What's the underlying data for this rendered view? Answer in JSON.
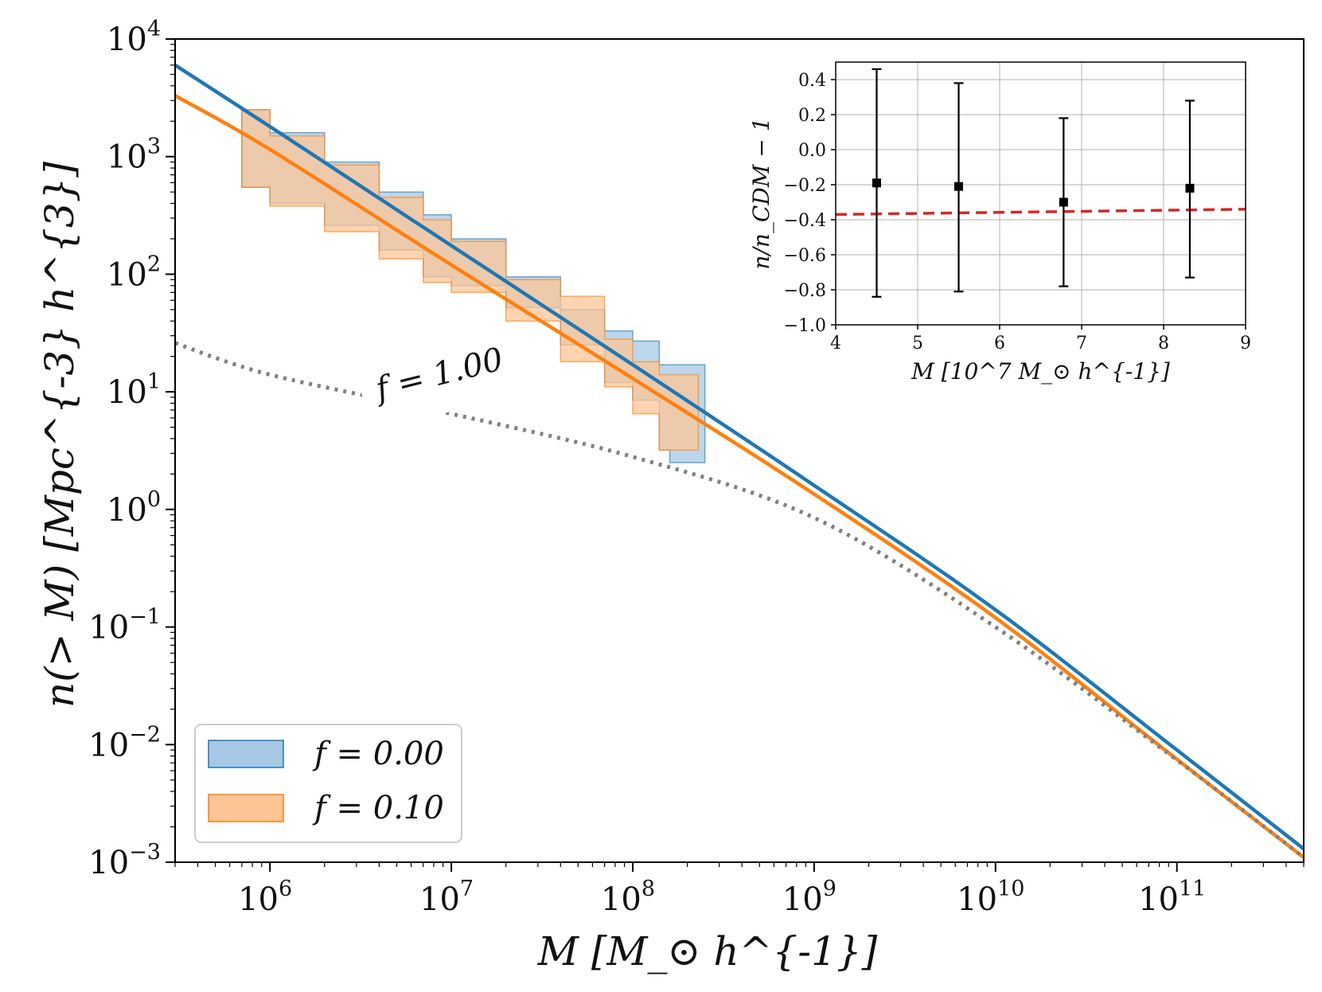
{
  "chart_data": [
    {
      "type": "line",
      "xscale": "log",
      "yscale": "log",
      "xlabel": "M [M_⊙ h^{-1}]",
      "ylabel": "n(> M) [Mpc^{-3} h^{3}]",
      "xlim": [
        300000,
        500000000000
      ],
      "ylim": [
        0.001,
        10000
      ],
      "xticks": [
        {
          "value": 1000000,
          "base": "10",
          "exp": "6"
        },
        {
          "value": 10000000,
          "base": "10",
          "exp": "7"
        },
        {
          "value": 100000000,
          "base": "10",
          "exp": "8"
        },
        {
          "value": 1000000000,
          "base": "10",
          "exp": "9"
        },
        {
          "value": 10000000000,
          "base": "10",
          "exp": "10"
        },
        {
          "value": 100000000000,
          "base": "10",
          "exp": "11"
        }
      ],
      "yticks": [
        {
          "value": 0.001,
          "base": "10",
          "exp": "−3"
        },
        {
          "value": 0.01,
          "base": "10",
          "exp": "−2"
        },
        {
          "value": 0.1,
          "base": "10",
          "exp": "−1"
        },
        {
          "value": 1,
          "base": "10",
          "exp": "0"
        },
        {
          "value": 10,
          "base": "10",
          "exp": "1"
        },
        {
          "value": 100,
          "base": "10",
          "exp": "2"
        },
        {
          "value": 1000,
          "base": "10",
          "exp": "3"
        },
        {
          "value": 10000,
          "base": "10",
          "exp": "4"
        }
      ],
      "legend_position": "lower-left",
      "series": [
        {
          "name": "f = 0.00",
          "kind": "line",
          "color": "#1f77b4",
          "x": [
            300000,
            1000000,
            10000000,
            100000000,
            1000000000,
            10000000000,
            100000000000,
            500000000000
          ],
          "y": [
            6000,
            1800,
            175,
            17,
            1.6,
            0.14,
            0.009,
            0.0013
          ]
        },
        {
          "name": "f = 0.10",
          "kind": "line",
          "color": "#ff7f0e",
          "x": [
            300000,
            1000000,
            10000000,
            100000000,
            1000000000,
            10000000000,
            100000000000,
            500000000000
          ],
          "y": [
            3300,
            1150,
            120,
            13,
            1.35,
            0.12,
            0.0075,
            0.0011
          ]
        },
        {
          "name": "f = 1.00",
          "kind": "dotted",
          "color": "#808080",
          "x": [
            300000,
            1000000,
            10000000,
            100000000,
            1000000000,
            10000000000,
            100000000000,
            500000000000
          ],
          "y": [
            26,
            14,
            6.5,
            2.8,
            0.85,
            0.1,
            0.0074,
            0.0011
          ]
        }
      ],
      "bands": [
        {
          "name": "f = 0.00",
          "color": "#1f77b4",
          "fill": "#a6c8e4",
          "x": [
            700000,
            1000000,
            2000000,
            4000000,
            7000000,
            10000000,
            20000000,
            40000000,
            70000000,
            100000000,
            140000000,
            160000000,
            250000000
          ],
          "upper": [
            2500,
            1600,
            900,
            500,
            320,
            200,
            95,
            50,
            33,
            27,
            17,
            17,
            9
          ],
          "lower": [
            550,
            400,
            260,
            160,
            95,
            80,
            52,
            25,
            12,
            8.5,
            3.2,
            2.5,
            2.5
          ]
        },
        {
          "name": "f = 0.10",
          "color": "#ff7f0e",
          "fill": "#fdc596",
          "x": [
            700000,
            1000000,
            2000000,
            4000000,
            7000000,
            10000000,
            20000000,
            40000000,
            70000000,
            100000000,
            140000000,
            160000000,
            230000000
          ],
          "upper": [
            2500,
            1500,
            850,
            450,
            290,
            190,
            90,
            65,
            28,
            18,
            14,
            14,
            14
          ],
          "lower": [
            550,
            380,
            230,
            135,
            85,
            70,
            40,
            18,
            11,
            6.5,
            3.2,
            3.2,
            3.2
          ]
        }
      ],
      "annotations": [
        {
          "text": "f = 1.00",
          "x": 4000000,
          "y": 8.5,
          "rotation": -14,
          "color": "#808080"
        }
      ]
    },
    {
      "type": "scatter",
      "xlabel": "M [10^7 M_⊙ h^{-1}]",
      "ylabel": "n/n_CDM − 1",
      "xlim": [
        4,
        9
      ],
      "ylim": [
        -1.0,
        0.5
      ],
      "grid": true,
      "xticks": [
        "4",
        "5",
        "6",
        "7",
        "8",
        "9"
      ],
      "yticks": [
        "−1.0",
        "−0.8",
        "−0.6",
        "−0.4",
        "−0.2",
        "0.0",
        "0.2",
        "0.4"
      ],
      "points": [
        {
          "x": 4.5,
          "y": -0.19,
          "err_low": -0.84,
          "err_high": 0.46
        },
        {
          "x": 5.5,
          "y": -0.21,
          "err_low": -0.81,
          "err_high": 0.38
        },
        {
          "x": 6.78,
          "y": -0.3,
          "err_low": -0.78,
          "err_high": 0.18
        },
        {
          "x": 8.32,
          "y": -0.22,
          "err_low": -0.73,
          "err_high": 0.28
        }
      ],
      "reference_line": {
        "color": "#d62728",
        "style": "dashed",
        "x": [
          4,
          9
        ],
        "y": [
          -0.37,
          -0.34
        ]
      }
    }
  ]
}
